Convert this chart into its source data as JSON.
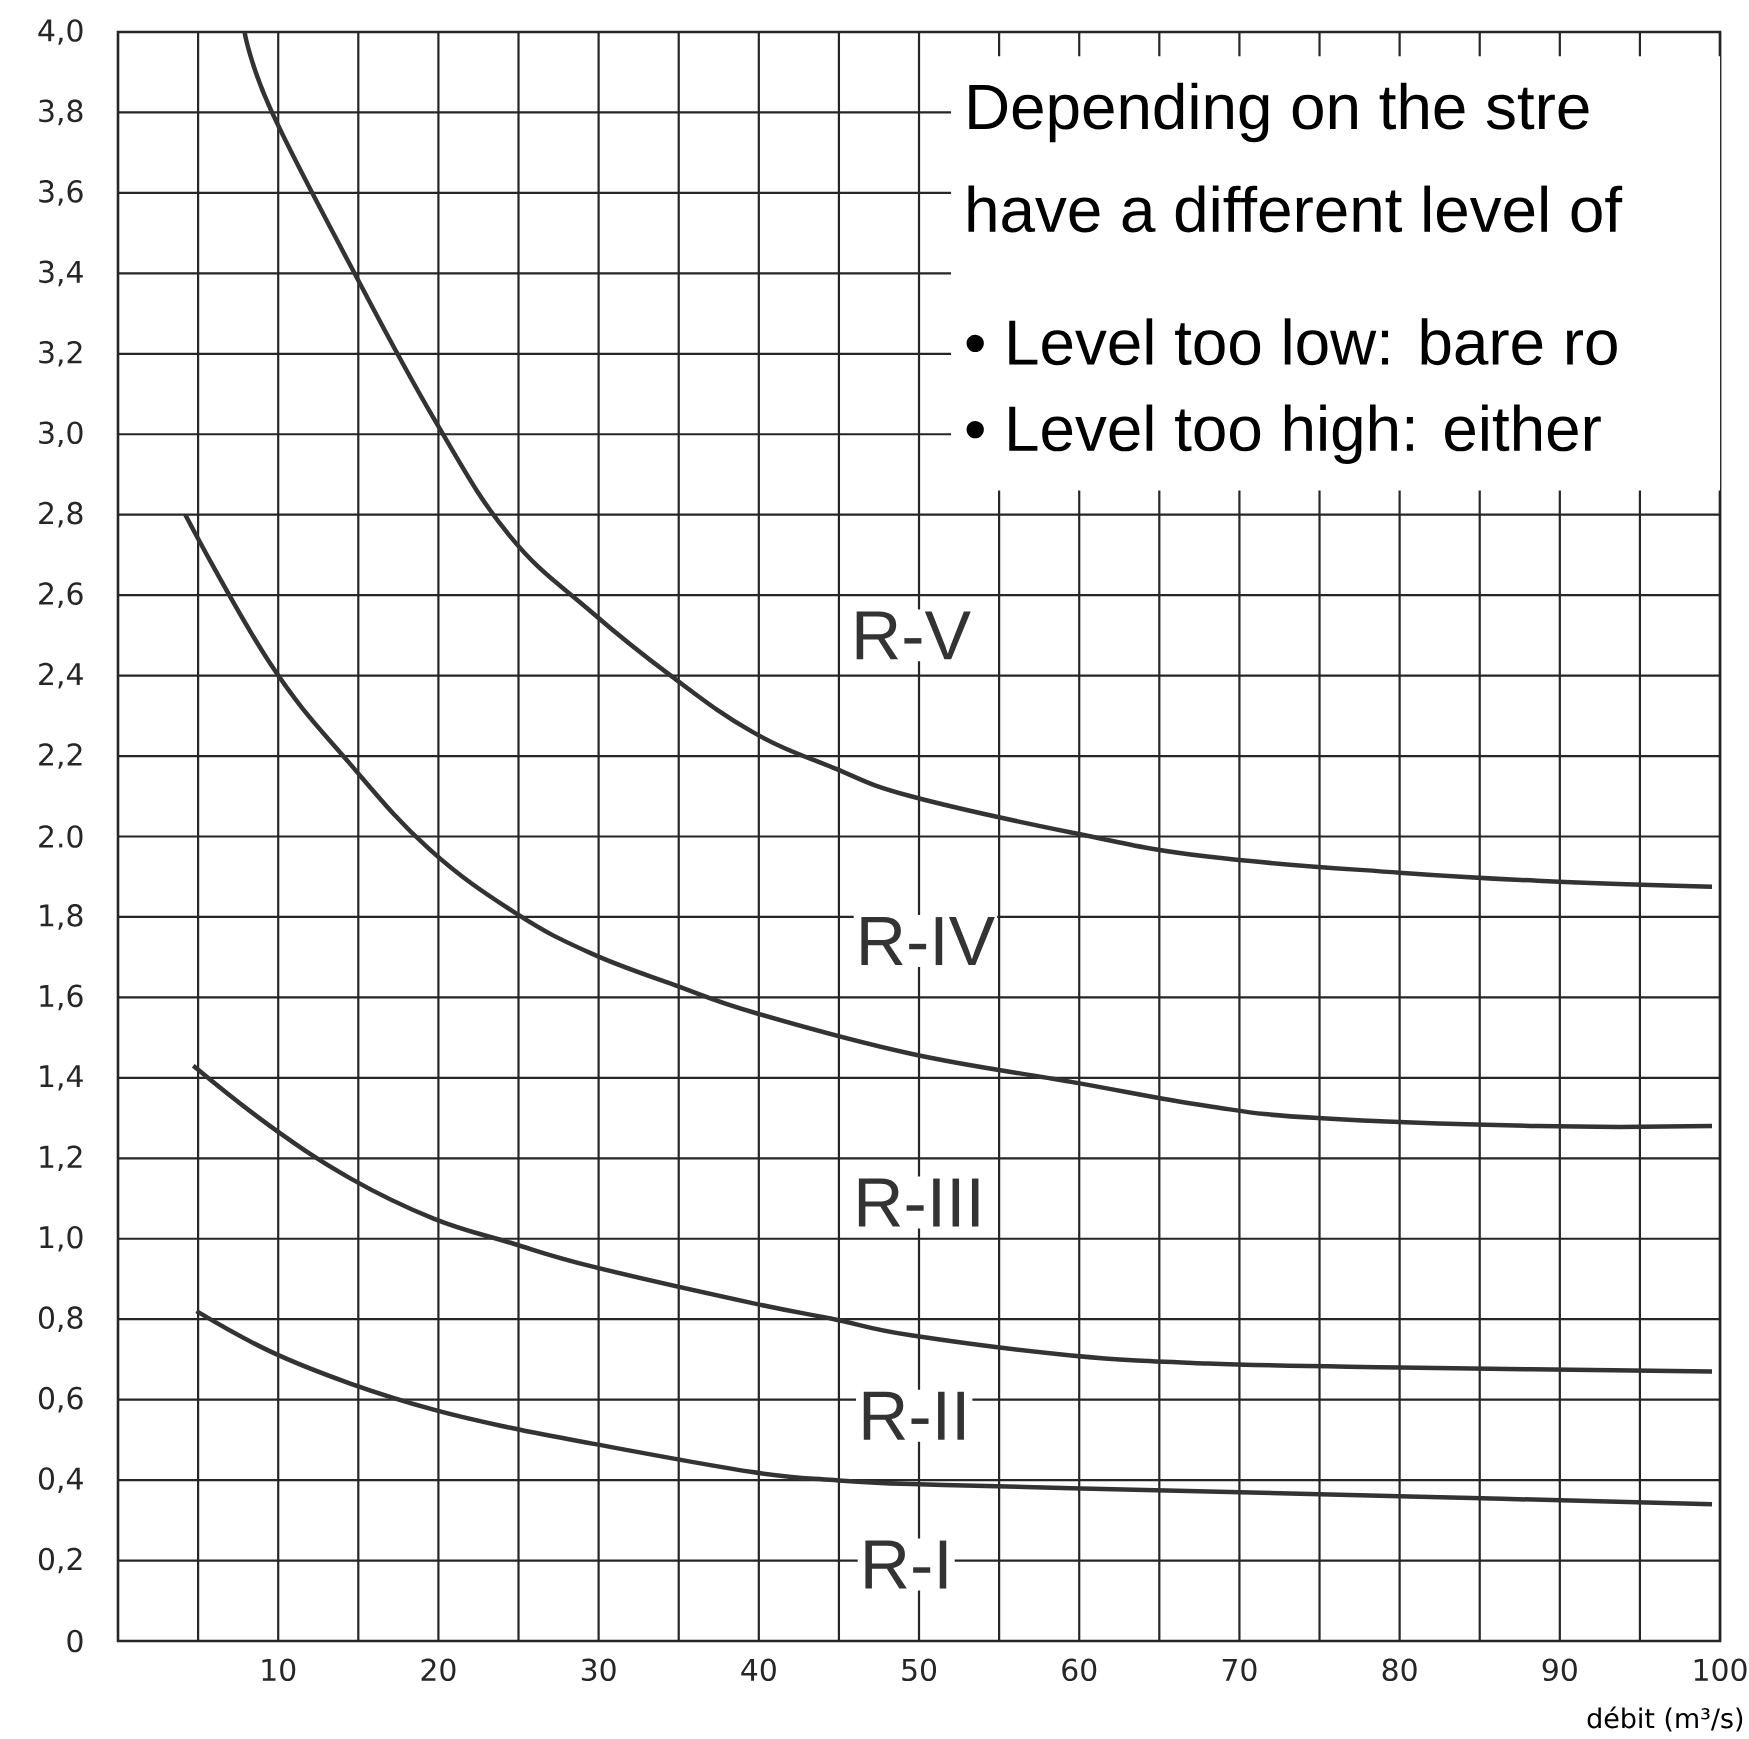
{
  "chart_data": {
    "type": "line",
    "xlabel": "débit (m³/s)",
    "xlim": [
      0,
      100
    ],
    "ylim": [
      0,
      4
    ],
    "xticks": [
      {
        "value": 5,
        "label": null
      },
      10,
      {
        "value": 15,
        "label": null
      },
      20,
      {
        "value": 25,
        "label": null
      },
      30,
      {
        "value": 35,
        "label": null
      },
      40,
      {
        "value": 45,
        "label": null
      },
      50,
      {
        "value": 55,
        "label": null
      },
      60,
      {
        "value": 65,
        "label": null
      },
      70,
      {
        "value": 75,
        "label": null
      },
      80,
      {
        "value": 85,
        "label": null
      },
      90,
      {
        "value": 95,
        "label": null
      },
      100
    ],
    "yticks": [
      0,
      {
        "value": 0.2,
        "label": "0,2"
      },
      {
        "value": 0.4,
        "label": "0,4"
      },
      {
        "value": 0.6,
        "label": "0,6"
      },
      {
        "value": 0.8,
        "label": "0,8"
      },
      {
        "value": 1.0,
        "label": "1,0"
      },
      {
        "value": 1.2,
        "label": "1,2"
      },
      {
        "value": 1.4,
        "label": "1,4"
      },
      {
        "value": 1.6,
        "label": "1,6"
      },
      {
        "value": 1.8,
        "label": "1,8"
      },
      {
        "value": 2.0,
        "label": "2.0"
      },
      {
        "value": 2.2,
        "label": "2,2"
      },
      {
        "value": 2.4,
        "label": "2,4"
      },
      {
        "value": 2.6,
        "label": "2,6"
      },
      {
        "value": 2.8,
        "label": "2,8"
      },
      {
        "value": 3.0,
        "label": "3,0"
      },
      {
        "value": 3.2,
        "label": "3,2"
      },
      {
        "value": 3.4,
        "label": "3,4"
      },
      {
        "value": 3.6,
        "label": "3,6"
      },
      {
        "value": 3.8,
        "label": "3,8"
      },
      {
        "value": 4.0,
        "label": "4,0"
      }
    ],
    "grid": true,
    "series": [
      {
        "color": "#333333",
        "x": [
          7.9,
          9.5,
          14.5,
          19.7,
          24.4,
          29.5,
          34.5,
          39.6,
          44.7,
          49.5,
          59.5,
          68,
          80,
          88.6,
          99.5
        ],
        "values": [
          4.0,
          3.81,
          3.42,
          3.04,
          2.75,
          2.56,
          2.4,
          2.26,
          2.17,
          2.1,
          2.01,
          1.95,
          1.91,
          1.89,
          1.875
        ]
      },
      {
        "color": "#333333",
        "x": [
          4.2,
          9.5,
          14.5,
          19.4,
          24.8,
          29.5,
          34.8,
          39.9,
          49.5,
          59.5,
          68,
          74.9,
          88.6,
          99.5
        ],
        "values": [
          2.8,
          2.43,
          2.18,
          1.97,
          1.81,
          1.71,
          1.63,
          1.56,
          1.46,
          1.39,
          1.33,
          1.3,
          1.28,
          1.28
        ]
      },
      {
        "color": "#333333",
        "x": [
          4.7,
          9.5,
          14.5,
          19.7,
          24.5,
          29.7,
          39.6,
          44.7,
          49.5,
          59.5,
          68,
          80,
          99.5
        ],
        "values": [
          1.43,
          1.28,
          1.15,
          1.05,
          0.99,
          0.93,
          0.84,
          0.8,
          0.76,
          0.71,
          0.69,
          0.68,
          0.67
        ]
      },
      {
        "color": "#333333",
        "x": [
          4.9,
          9.5,
          14.5,
          19.7,
          24.5,
          29.7,
          39.6,
          44.7,
          49.5,
          59.5,
          80,
          99.5
        ],
        "values": [
          0.82,
          0.72,
          0.64,
          0.575,
          0.53,
          0.49,
          0.42,
          0.4,
          0.39,
          0.38,
          0.36,
          0.34
        ]
      }
    ],
    "annotations": [
      "R-V",
      "R-IV",
      "R-III",
      "R-II",
      "R-I",
      "Depending on the stre",
      "have a different level of",
      "• Level too low: bare ro",
      "• Level too high: either"
    ]
  }
}
